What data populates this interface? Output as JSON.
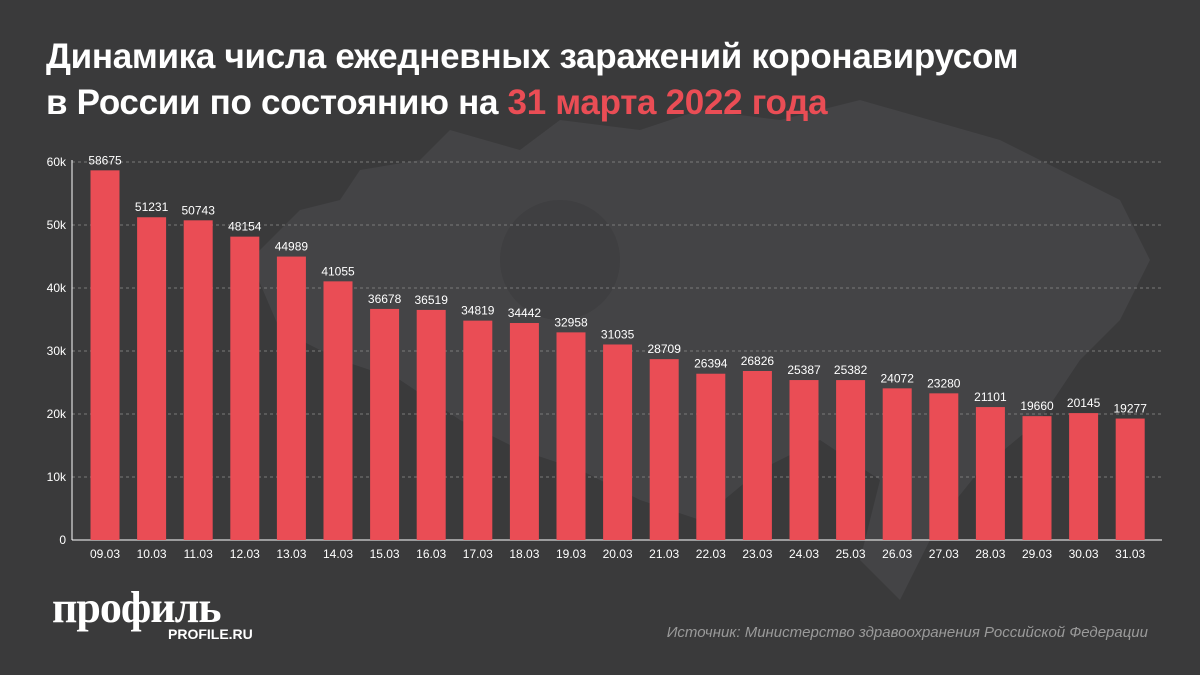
{
  "title": {
    "line1": "Динамика числа ежедневных заражений коронавирусом",
    "line2_prefix": "в России по состоянию на ",
    "line2_accent": "31 марта 2022 года"
  },
  "colors": {
    "background": "#3a3a3b",
    "bar": "#ea4d55",
    "accent": "#ea4d55",
    "text": "#ffffff",
    "source_text": "#9a9a9a",
    "gridline": "#7a7a7a"
  },
  "chart_data": {
    "type": "bar",
    "categories": [
      "09.03",
      "10.03",
      "11.03",
      "12.03",
      "13.03",
      "14.03",
      "15.03",
      "16.03",
      "17.03",
      "18.03",
      "19.03",
      "20.03",
      "21.03",
      "22.03",
      "23.03",
      "24.03",
      "25.03",
      "26.03",
      "27.03",
      "28.03",
      "29.03",
      "30.03",
      "31.03"
    ],
    "values": [
      58675,
      51231,
      50743,
      48154,
      44989,
      41055,
      36678,
      36519,
      34819,
      34442,
      32958,
      31035,
      28709,
      26394,
      26826,
      25387,
      25382,
      24072,
      23280,
      21101,
      19660,
      20145,
      19277
    ],
    "ylim": [
      0,
      60000
    ],
    "yticks": [
      0,
      10000,
      20000,
      30000,
      40000,
      50000,
      60000
    ],
    "ytick_labels": [
      "0",
      "10k",
      "20k",
      "30k",
      "40k",
      "50k",
      "60k"
    ],
    "grid": "horizontal dashed",
    "data_labels": true
  },
  "logo": {
    "text": "профиль",
    "url": "PROFILE.RU"
  },
  "source": "Источник: Министерство здравоохранения Российской Федерации"
}
